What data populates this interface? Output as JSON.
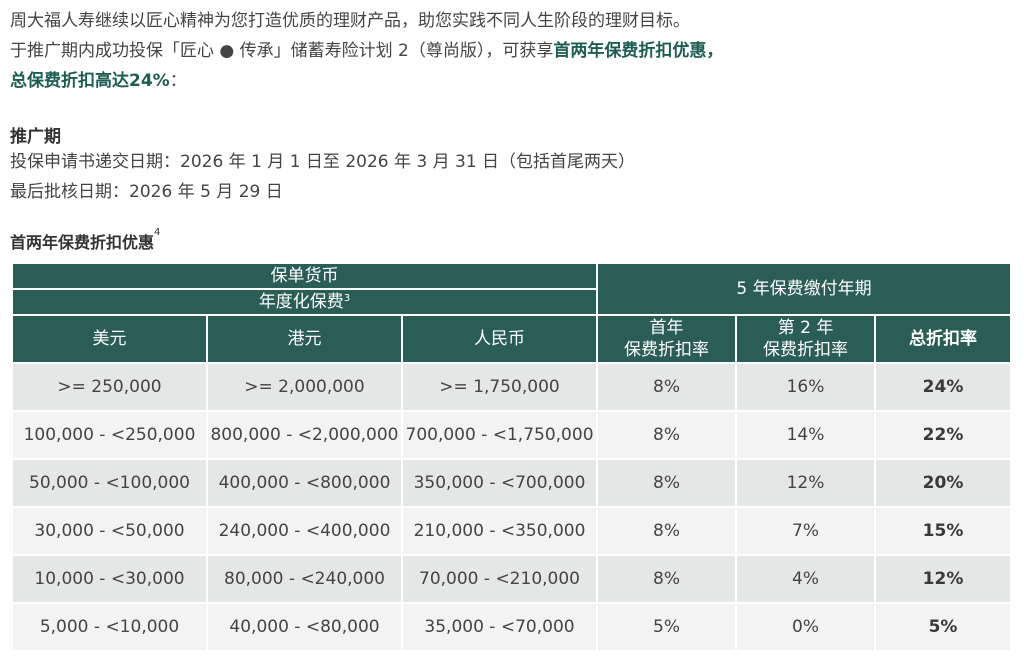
{
  "intro": {
    "line1": "周大福人寿继续以匠心精神为您打造优质的理财产品，助您实践不同人生阶段的理财目标。",
    "line2_prefix": "于推广期内成功投保「匠心 ● 传承」储蓄寿险计划 2（尊尚版），可获享",
    "line2_highlight": "首两年保费折扣优惠，",
    "line3_highlight": "总保费折扣高达24%",
    "line3_suffix": "："
  },
  "promotion": {
    "title": "推广期",
    "application_period": "投保申请书递交日期：2026 年 1 月 1 日至 2026 年 3 月 31 日（包括首尾两天）",
    "final_approval": "最后批核日期：2026 年 5 月 29 日"
  },
  "table": {
    "title": "首两年保费折扣优惠",
    "title_note": "4",
    "header": {
      "policy_currency": "保单货币",
      "annualized_premium": "年度化保费",
      "annualized_premium_note": "3",
      "payment_term": "5 年保费缴付年期",
      "usd": "美元",
      "hkd": "港元",
      "rmb": "人民币",
      "first_year_l1": "首年",
      "first_year_l2": "保费折扣率",
      "second_year_l1": "第 2 年",
      "second_year_l2": "保费折扣率",
      "total": "总折扣率"
    },
    "rows": [
      {
        "usd": ">= 250,000",
        "hkd": ">= 2,000,000",
        "rmb": ">= 1,750,000",
        "first": "8%",
        "second": "16%",
        "total": "24%"
      },
      {
        "usd": "100,000 - <250,000",
        "hkd": "800,000 - <2,000,000",
        "rmb": "700,000 - <1,750,000",
        "first": "8%",
        "second": "14%",
        "total": "22%"
      },
      {
        "usd": "50,000 - <100,000",
        "hkd": "400,000 - <800,000",
        "rmb": "350,000 - <700,000",
        "first": "8%",
        "second": "12%",
        "total": "20%"
      },
      {
        "usd": "30,000 - <50,000",
        "hkd": "240,000 - <400,000",
        "rmb": "210,000 - <350,000",
        "first": "8%",
        "second": "7%",
        "total": "15%"
      },
      {
        "usd": "10,000 - <30,000",
        "hkd": "80,000 - <240,000",
        "rmb": "70,000 - <210,000",
        "first": "8%",
        "second": "4%",
        "total": "12%"
      },
      {
        "usd": "5,000 - <10,000",
        "hkd": "40,000 - <80,000",
        "rmb": "35,000 - <70,000",
        "first": "5%",
        "second": "0%",
        "total": "5%"
      }
    ]
  },
  "colors": {
    "header_bg": "#2a5e55",
    "highlight_text": "#1d5e52",
    "row_odd": "#e5e7e6",
    "row_even": "#f2f3f2"
  }
}
